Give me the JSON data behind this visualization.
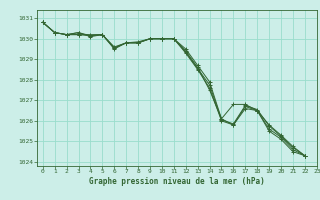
{
  "title": "Graphe pression niveau de la mer (hPa)",
  "background_color": "#cceee8",
  "grid_color": "#99ddcc",
  "line_color": "#336633",
  "xlim": [
    -0.5,
    23
  ],
  "ylim": [
    1023.8,
    1031.4
  ],
  "yticks": [
    1024,
    1025,
    1026,
    1027,
    1028,
    1029,
    1030,
    1031
  ],
  "xticks": [
    0,
    1,
    2,
    3,
    4,
    5,
    6,
    7,
    8,
    9,
    10,
    11,
    12,
    13,
    14,
    15,
    16,
    17,
    18,
    19,
    20,
    21,
    22,
    23
  ],
  "series": [
    [
      1030.8,
      1030.3,
      1030.2,
      1030.3,
      1030.15,
      1030.2,
      1029.55,
      1029.8,
      1029.85,
      1030.0,
      1030.0,
      1030.0,
      1029.35,
      1028.55,
      1027.75,
      1026.05,
      1025.85,
      1026.75,
      1026.55,
      1025.75,
      1025.25,
      1024.7,
      1024.3
    ],
    [
      1030.8,
      1030.3,
      1030.2,
      1030.2,
      1030.2,
      1030.2,
      1029.6,
      1029.8,
      1029.8,
      1030.0,
      1030.0,
      1030.0,
      1029.5,
      1028.7,
      1027.9,
      1026.1,
      1026.8,
      1026.8,
      1026.5,
      1025.8,
      1025.3,
      1024.75,
      1024.3
    ],
    [
      1030.8,
      1030.3,
      1030.2,
      1030.3,
      1030.1,
      1030.2,
      1029.5,
      1029.8,
      1029.8,
      1030.0,
      1030.0,
      1030.0,
      1029.4,
      1028.6,
      1027.5,
      1026.1,
      1025.8,
      1026.6,
      1026.5,
      1025.5,
      1025.1,
      1024.5,
      1024.3
    ],
    [
      1030.8,
      1030.3,
      1030.2,
      1030.2,
      1030.15,
      1030.2,
      1029.55,
      1029.8,
      1029.8,
      1030.0,
      1030.0,
      1030.0,
      1029.3,
      1028.5,
      1027.6,
      1026.0,
      1025.8,
      1026.7,
      1026.5,
      1025.6,
      1025.2,
      1024.6,
      1024.3
    ]
  ]
}
